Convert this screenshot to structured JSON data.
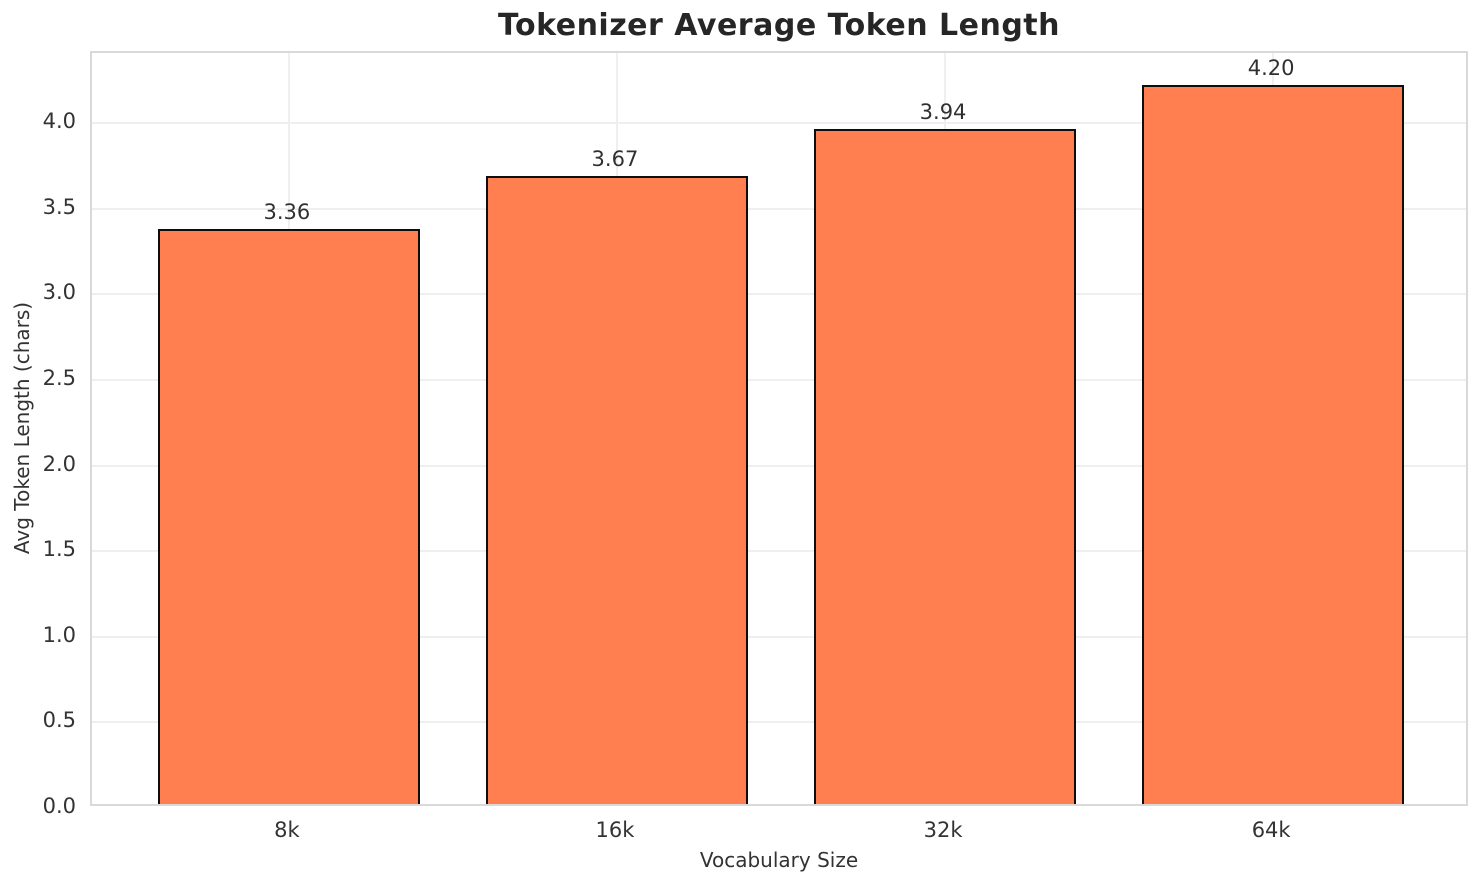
{
  "chart_data": {
    "type": "bar",
    "title": "Tokenizer Average Token Length",
    "xlabel": "Vocabulary Size",
    "ylabel": "Avg Token Length (chars)",
    "categories": [
      "8k",
      "16k",
      "32k",
      "64k"
    ],
    "values": [
      3.36,
      3.67,
      3.94,
      4.2
    ],
    "value_labels": [
      "3.36",
      "3.67",
      "3.94",
      "4.20"
    ],
    "ylim": [
      0,
      4.41
    ],
    "yticks": [
      0.0,
      0.5,
      1.0,
      1.5,
      2.0,
      2.5,
      3.0,
      3.5,
      4.0
    ],
    "ytick_labels": [
      "0.0",
      "0.5",
      "1.0",
      "1.5",
      "2.0",
      "2.5",
      "3.0",
      "3.5",
      "4.0"
    ],
    "grid": true,
    "legend_position": "none",
    "bar_color": "#FF7F50",
    "bar_edge_color": "#0d0d0d",
    "gridline_color": "#efefef",
    "spine_color": "#d9d9d9",
    "title_color": "#262626",
    "tick_label_color": "#333333"
  }
}
